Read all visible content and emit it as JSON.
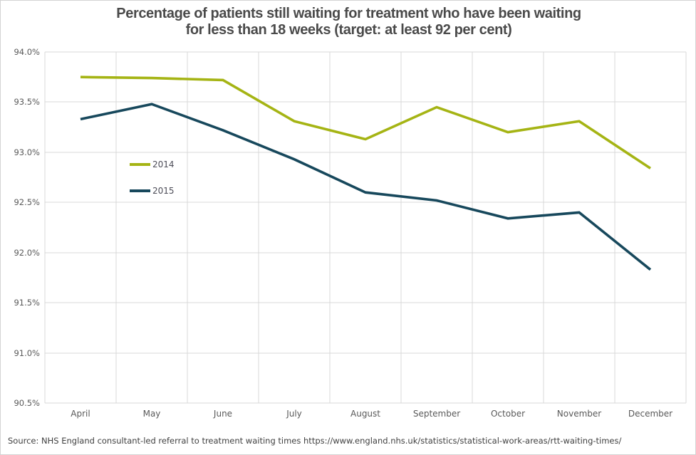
{
  "title": {
    "line1": "Percentage of patients still waiting for treatment who have been waiting",
    "line2": "for less than 18 weeks (target: at least 92 per cent)"
  },
  "source": "Source: NHS England consultant-led referral to treatment waiting times https://www.england.nhs.uk/statistics/statistical-work-areas/rtt-waiting-times/",
  "colors": {
    "grid": "#d9d9d9",
    "axis_text": "#595959",
    "title_text": "#4a4a4a",
    "source_text": "#404040",
    "background": "#ffffff",
    "series_2014": "#a5b414",
    "series_2015": "#17485c"
  },
  "chart_data": {
    "type": "line",
    "title": "Percentage of patients still waiting for treatment who have been waiting for less than 18 weeks (target: at least 92 per cent)",
    "categories": [
      "April",
      "May",
      "June",
      "July",
      "August",
      "September",
      "October",
      "November",
      "December"
    ],
    "series": [
      {
        "name": "2014",
        "color": "#a5b414",
        "values": [
          93.75,
          93.74,
          93.72,
          93.31,
          93.13,
          93.45,
          93.2,
          93.31,
          92.84
        ]
      },
      {
        "name": "2015",
        "color": "#17485c",
        "values": [
          93.33,
          93.48,
          93.22,
          92.93,
          92.6,
          92.52,
          92.34,
          92.4,
          91.83
        ]
      }
    ],
    "xlabel": "",
    "ylabel": "",
    "ylim": [
      90.5,
      94.0
    ],
    "ytick_step": 0.5,
    "ytick_format": "0.0%",
    "grid": true,
    "legend_position": "inside-top-left"
  }
}
